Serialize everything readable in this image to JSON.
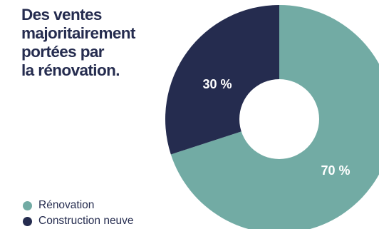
{
  "colors": {
    "title": "#252c4f",
    "text": "#252c4f",
    "hole": "#ffffff",
    "slice_text": "#ffffff"
  },
  "title_lines": [
    "Des ventes",
    "majoritairement",
    "portées par",
    "la rénovation."
  ],
  "chart_data": {
    "type": "pie",
    "variant": "donut",
    "title": "Des ventes majoritairement portées par la rénovation.",
    "legend_placement": "bottom-left",
    "slices": [
      {
        "name": "Rénovation",
        "value": 70,
        "label": "70 %",
        "color": "#72aba4"
      },
      {
        "name": "Construction neuve",
        "value": 30,
        "label": "30 %",
        "color": "#252c4f"
      }
    ]
  }
}
